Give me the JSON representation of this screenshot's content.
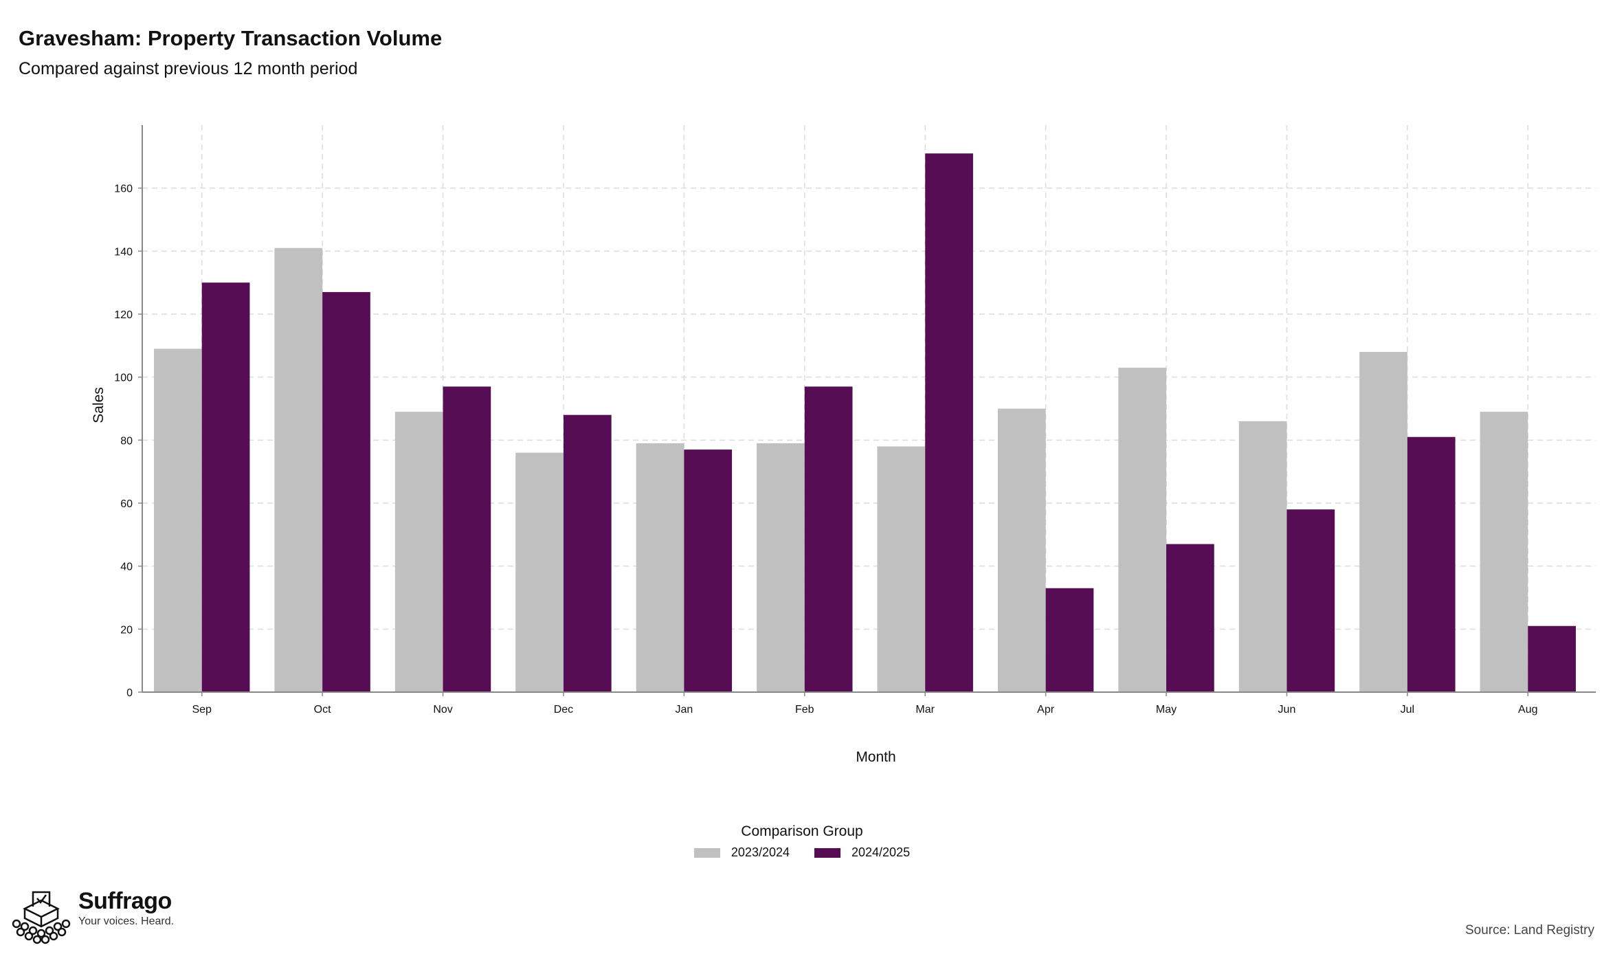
{
  "title": "Gravesham: Property Transaction Volume",
  "subtitle": "Compared against previous 12 month period",
  "chart_data": {
    "type": "bar",
    "categories": [
      "Sep",
      "Oct",
      "Nov",
      "Dec",
      "Jan",
      "Feb",
      "Mar",
      "Apr",
      "May",
      "Jun",
      "Jul",
      "Aug"
    ],
    "series": [
      {
        "name": "2023/2024",
        "color": "#c0c0c0",
        "values": [
          109,
          141,
          89,
          76,
          79,
          79,
          78,
          90,
          103,
          86,
          108,
          89
        ]
      },
      {
        "name": "2024/2025",
        "color": "#560d53",
        "values": [
          130,
          127,
          97,
          88,
          77,
          97,
          171,
          33,
          47,
          58,
          81,
          21
        ]
      }
    ],
    "xlabel": "Month",
    "ylabel": "Sales",
    "ylim": [
      0,
      180
    ],
    "yticks": [
      0,
      20,
      40,
      60,
      80,
      100,
      120,
      140,
      160
    ],
    "grid": true,
    "legend": {
      "title": "Comparison Group",
      "position": "bottom"
    }
  },
  "brand": {
    "name": "Suffrago",
    "tagline": "Your voices. Heard."
  },
  "source": "Source: Land Registry"
}
